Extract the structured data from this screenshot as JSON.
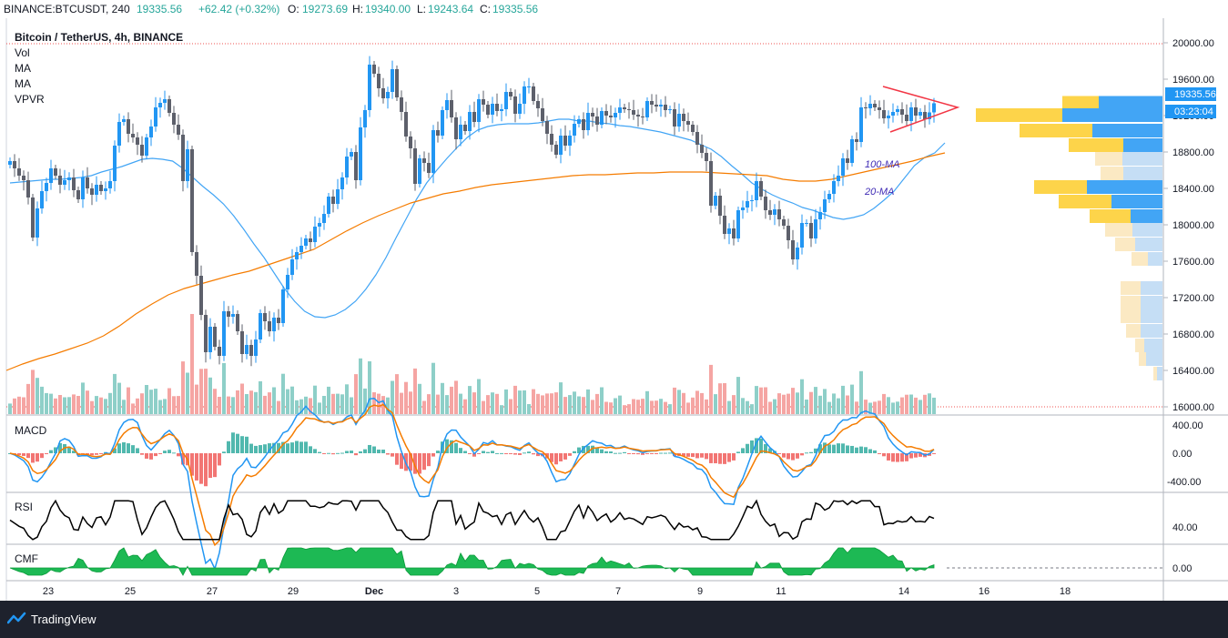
{
  "header": {
    "symbol": "BINANCE:BTCUSDT, 240",
    "last": "19335.56",
    "change": "+62.42 (+0.32%)",
    "o_label": "O:",
    "o_value": "19273.69",
    "h_label": "H:",
    "h_value": "19340.00",
    "l_label": "L:",
    "l_value": "19243.64",
    "c_label": "C:",
    "c_value": "19335.56"
  },
  "legend": {
    "title": "Bitcoin / TetherUS, 4h, BINANCE",
    "items": [
      "Vol",
      "MA",
      "MA",
      "VPVR"
    ]
  },
  "pane_labels": {
    "macd": "MACD",
    "rsi": "RSI",
    "cmf": "CMF"
  },
  "annotations": {
    "ma100": "100-MA",
    "ma20": "20-MA"
  },
  "price_tag": {
    "price": "19335.56",
    "countdown": "03:23:04"
  },
  "footer": {
    "brand": "TradingView"
  },
  "colors": {
    "up": "#26a69a",
    "down": "#ef5350",
    "price_blue": "#2196f3",
    "ma20": "#42a5f5",
    "ma100": "#f57c00",
    "vp_yellow": "#fdd44a",
    "vp_blue": "#42a5f5"
  },
  "chart_data": {
    "type": "candlestick",
    "symbol": "BTCUSDT",
    "timeframe": "4h",
    "x_ticks": [
      "23",
      "25",
      "27",
      "29",
      "Dec",
      "3",
      "5",
      "7",
      "9",
      "11",
      "14",
      "16",
      "18"
    ],
    "price_axis": {
      "ticks": [
        "20000.00",
        "19600.00",
        "19200.00",
        "18800.00",
        "18400.00",
        "18000.00",
        "17600.00",
        "17200.00",
        "16800.00",
        "16400.00",
        "16000.00"
      ],
      "ylim": [
        16000,
        20000
      ]
    },
    "macd_axis": {
      "ticks": [
        "400.00",
        "0.00",
        "-400.00"
      ]
    },
    "rsi_axis": {
      "ticks": [
        "40.00"
      ]
    },
    "cmf_axis": {
      "ticks": [
        "0.00"
      ]
    },
    "closes": [
      18700,
      18620,
      18540,
      18490,
      18300,
      17860,
      18180,
      18370,
      18460,
      18620,
      18540,
      18440,
      18490,
      18520,
      18380,
      18280,
      18520,
      18400,
      18330,
      18440,
      18370,
      18400,
      18480,
      18870,
      19130,
      19160,
      19000,
      18960,
      18880,
      18760,
      18960,
      19080,
      19290,
      19340,
      19380,
      19230,
      19100,
      18990,
      18480,
      18830,
      17700,
      17440,
      17010,
      16600,
      16880,
      16660,
      16560,
      17050,
      16990,
      17020,
      16830,
      16580,
      16680,
      16560,
      16740,
      17030,
      16940,
      16830,
      16980,
      16920,
      17290,
      17450,
      17620,
      17700,
      17770,
      17850,
      17810,
      17980,
      18020,
      18120,
      18310,
      18230,
      18390,
      18520,
      18750,
      18800,
      18490,
      19070,
      19260,
      19760,
      19660,
      19500,
      19390,
      19460,
      19710,
      19400,
      19240,
      18970,
      18840,
      18450,
      18730,
      18680,
      18570,
      19040,
      18980,
      19260,
      19370,
      19180,
      18940,
      19100,
      19030,
      19240,
      19130,
      19380,
      19320,
      19210,
      19330,
      19250,
      19270,
      19460,
      19410,
      19220,
      19330,
      19520,
      19520,
      19360,
      19280,
      19140,
      19000,
      18880,
      18770,
      18980,
      18870,
      18980,
      19110,
      19160,
      19040,
      19230,
      19190,
      19100,
      19250,
      19200,
      19180,
      19230,
      19290,
      19270,
      19260,
      19210,
      19190,
      19180,
      19360,
      19320,
      19300,
      19320,
      19260,
      19270,
      19080,
      19220,
      19140,
      19100,
      19020,
      18880,
      18790,
      18700,
      18210,
      18320,
      18100,
      17900,
      17960,
      17850,
      18160,
      18190,
      18260,
      18270,
      18480,
      18310,
      18160,
      18110,
      18170,
      18060,
      17990,
      17830,
      17620,
      17750,
      18020,
      18020,
      17850,
      18060,
      18140,
      18280,
      18340,
      18480,
      18540,
      18730,
      18680,
      18940,
      18910,
      19290,
      19280,
      19330,
      19290,
      19260,
      19170,
      19200,
      19240,
      19270,
      19210,
      19140,
      19290,
      19200,
      19240,
      19160,
      19235,
      19335.56
    ],
    "ma20": [
      18460,
      18470,
      18480,
      18490,
      18500,
      18500,
      18510,
      18520,
      18540,
      18580,
      18610,
      18640,
      18680,
      18720,
      18730,
      18720,
      18700,
      18620,
      18520,
      18420,
      18330,
      18230,
      18100,
      17950,
      17790,
      17640,
      17470,
      17300,
      17160,
      17050,
      16990,
      16980,
      17010,
      17070,
      17160,
      17290,
      17450,
      17640,
      17860,
      18070,
      18280,
      18460,
      18600,
      18730,
      18850,
      18960,
      19040,
      19080,
      19100,
      19110,
      19110,
      19110,
      19120,
      19140,
      19160,
      19160,
      19140,
      19140,
      19120,
      19110,
      19090,
      19080,
      19060,
      19040,
      19020,
      18990,
      18960,
      18930,
      18880,
      18830,
      18750,
      18650,
      18560,
      18460,
      18390,
      18330,
      18280,
      18240,
      18190,
      18160,
      18120,
      18080,
      18060,
      18080,
      18110,
      18180,
      18270,
      18370,
      18510,
      18650,
      18740,
      18790,
      18900
    ],
    "ma100": [
      16400,
      16470,
      16530,
      16580,
      16640,
      16700,
      16780,
      16890,
      17020,
      17130,
      17230,
      17300,
      17350,
      17400,
      17450,
      17490,
      17550,
      17610,
      17670,
      17730,
      17830,
      17930,
      18020,
      18100,
      18170,
      18240,
      18290,
      18340,
      18370,
      18410,
      18440,
      18460,
      18480,
      18500,
      18520,
      18540,
      18550,
      18550,
      18560,
      18570,
      18570,
      18580,
      18580,
      18580,
      18570,
      18560,
      18550,
      18540,
      18500,
      18480,
      18480,
      18500,
      18540,
      18580,
      18620,
      18660,
      18700,
      18750,
      18790
    ],
    "volume_profile": [
      {
        "price": 19335,
        "buy": 40,
        "sell": 70
      },
      {
        "price": 19200,
        "buy": 95,
        "sell": 110
      },
      {
        "price": 19030,
        "buy": 80,
        "sell": 77
      },
      {
        "price": 18870,
        "buy": 60,
        "sell": 43
      },
      {
        "price": 18720,
        "buy": 30,
        "sell": 44
      },
      {
        "price": 18560,
        "buy": 25,
        "sell": 43
      },
      {
        "price": 18410,
        "buy": 58,
        "sell": 83
      },
      {
        "price": 18250,
        "buy": 58,
        "sell": 56
      },
      {
        "price": 18090,
        "buy": 45,
        "sell": 35
      },
      {
        "price": 17940,
        "buy": 30,
        "sell": 33
      },
      {
        "price": 17780,
        "buy": 22,
        "sell": 30
      },
      {
        "price": 17620,
        "buy": 18,
        "sell": 16
      },
      {
        "price": 17300,
        "buy": 22,
        "sell": 24
      },
      {
        "price": 17140,
        "buy": 22,
        "sell": 24
      },
      {
        "price": 16990,
        "buy": 22,
        "sell": 24
      },
      {
        "price": 16830,
        "buy": 16,
        "sell": 24
      },
      {
        "price": 16670,
        "buy": 10,
        "sell": 20
      },
      {
        "price": 16520,
        "buy": 8,
        "sell": 18
      },
      {
        "price": 16360,
        "buy": 4,
        "sell": 6
      }
    ]
  }
}
